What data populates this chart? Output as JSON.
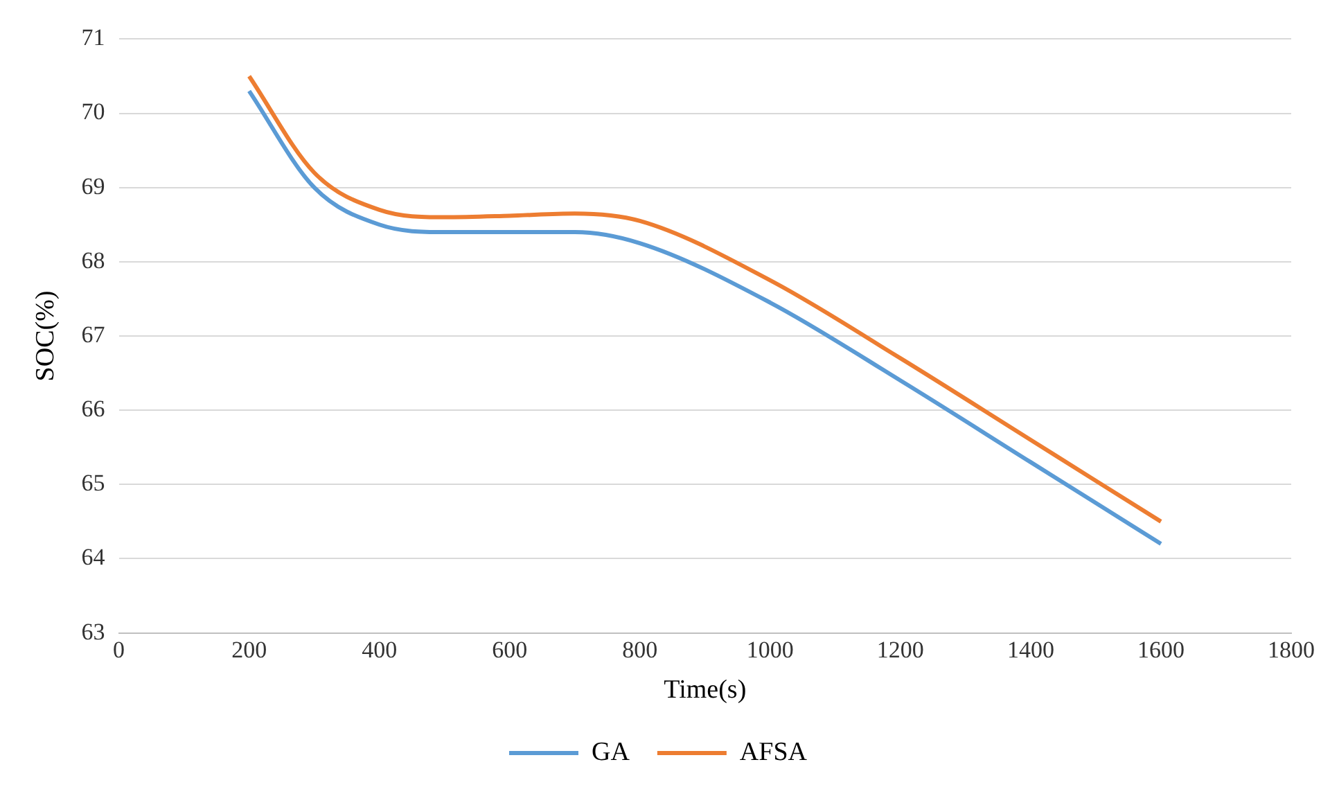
{
  "chart_data": {
    "type": "line",
    "xlabel": "Time(s)",
    "ylabel": "SOC(%)",
    "x": [
      200,
      300,
      400,
      500,
      600,
      700,
      800,
      1000,
      1200,
      1400,
      1600
    ],
    "series": [
      {
        "name": "GA",
        "color": "#5b9bd5",
        "values": [
          70.3,
          69.0,
          68.5,
          68.4,
          68.4,
          68.4,
          68.25,
          67.45,
          66.4,
          65.3,
          64.2
        ]
      },
      {
        "name": "AFSA",
        "color": "#ed7d31",
        "values": [
          70.5,
          69.2,
          68.7,
          68.6,
          68.62,
          68.65,
          68.55,
          67.75,
          66.7,
          65.6,
          64.5
        ]
      }
    ],
    "xlim": [
      0,
      1800
    ],
    "xticks": [
      0,
      200,
      400,
      600,
      800,
      1000,
      1200,
      1400,
      1600,
      1800
    ],
    "ylim": [
      63,
      71
    ],
    "yticks": [
      63,
      64,
      65,
      66,
      67,
      68,
      69,
      70,
      71
    ],
    "grid": "y",
    "legend": "bottom",
    "marker": "none",
    "line_style": "solid"
  }
}
